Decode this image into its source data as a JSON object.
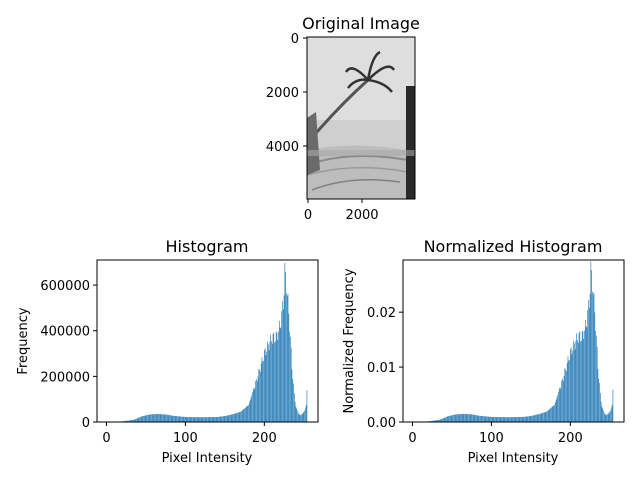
{
  "chart_data": [
    {
      "type": "image",
      "title": "Original Image",
      "x_ticks": [
        0,
        2000
      ],
      "y_ticks": [
        0,
        2000,
        4000
      ],
      "xlim": [
        0,
        4000
      ],
      "ylim": [
        6000,
        0
      ]
    },
    {
      "type": "bar",
      "title": "Histogram",
      "xlabel": "Pixel Intensity",
      "ylabel": "Frequency",
      "xlim": [
        -12,
        268
      ],
      "ylim": [
        0,
        710000
      ],
      "x_ticks": [
        0,
        100,
        200
      ],
      "y_ticks": [
        0,
        200000,
        400000,
        600000
      ],
      "y_tick_labels": [
        "0",
        "200000",
        "400000",
        "600000"
      ],
      "bar_color": "#1f77b4",
      "bins": 256,
      "profile_keypoints": [
        [
          0,
          0
        ],
        [
          15,
          800
        ],
        [
          25,
          5000
        ],
        [
          35,
          10000
        ],
        [
          45,
          25000
        ],
        [
          55,
          33000
        ],
        [
          65,
          35000
        ],
        [
          75,
          33000
        ],
        [
          85,
          27000
        ],
        [
          100,
          22000
        ],
        [
          120,
          21000
        ],
        [
          140,
          22000
        ],
        [
          150,
          26000
        ],
        [
          160,
          34000
        ],
        [
          170,
          45000
        ],
        [
          180,
          75000
        ],
        [
          190,
          180000
        ],
        [
          200,
          300000
        ],
        [
          205,
          335000
        ],
        [
          210,
          370000
        ],
        [
          215,
          370000
        ],
        [
          220,
          420000
        ],
        [
          224,
          520000
        ],
        [
          226,
          655000
        ],
        [
          228,
          610000
        ],
        [
          230,
          520000
        ],
        [
          232,
          430000
        ],
        [
          235,
          240000
        ],
        [
          238,
          120000
        ],
        [
          240,
          70000
        ],
        [
          243,
          40000
        ],
        [
          245,
          30000
        ],
        [
          248,
          35000
        ],
        [
          251,
          50000
        ],
        [
          253,
          75000
        ],
        [
          254,
          140000
        ],
        [
          255,
          0
        ]
      ]
    },
    {
      "type": "bar",
      "title": "Normalized Histogram",
      "xlabel": "Pixel Intensity",
      "ylabel": "Normalized Frequency",
      "xlim": [
        -12,
        268
      ],
      "ylim": [
        0,
        0.0295
      ],
      "x_ticks": [
        0,
        100,
        200
      ],
      "y_ticks": [
        0,
        0.01,
        0.02
      ],
      "y_tick_labels": [
        "0.00",
        "0.01",
        "0.02"
      ],
      "bar_color": "#1f77b4",
      "bins": 256,
      "normalization_total": 23800000
    }
  ]
}
